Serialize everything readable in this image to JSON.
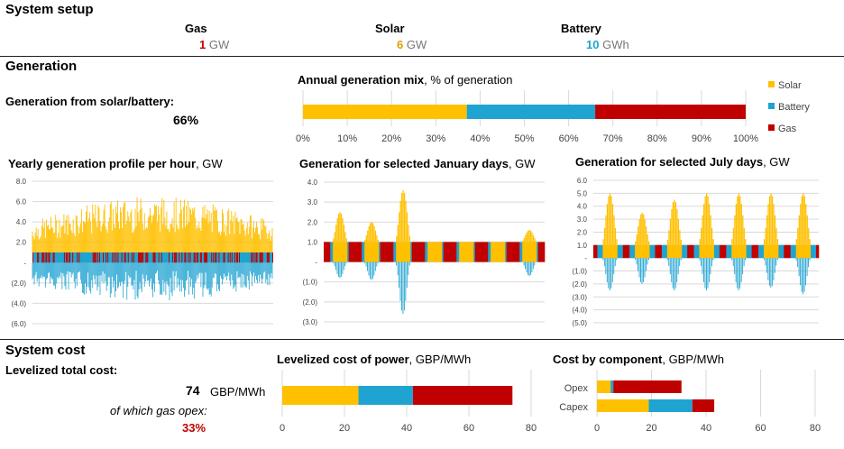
{
  "colors": {
    "solar": "#FFC000",
    "battery": "#1FA3D1",
    "gas": "#C00000"
  },
  "setup": {
    "title": "System setup",
    "gas": {
      "label": "Gas",
      "value": "1",
      "unit": "GW"
    },
    "solar": {
      "label": "Solar",
      "value": "6",
      "unit": "GW"
    },
    "battery": {
      "label": "Battery",
      "value": "10",
      "unit": "GWh"
    }
  },
  "generation": {
    "title": "Generation",
    "share_label": "Generation from solar/battery:",
    "share_value": "66%"
  },
  "cost": {
    "title": "System cost",
    "total_label": "Levelized total cost:",
    "total_value": "74",
    "total_unit": "GBP/MWh",
    "opex_label": "of which gas opex:",
    "opex_value": "33%"
  },
  "chart_data": [
    {
      "type": "bar",
      "id": "mix",
      "title": "Annual generation mix",
      "subtitle": ", % of generation",
      "categories": [
        "mix"
      ],
      "series": [
        {
          "name": "Solar",
          "values": [
            37
          ]
        },
        {
          "name": "Battery",
          "values": [
            29
          ]
        },
        {
          "name": "Gas",
          "values": [
            34
          ]
        }
      ],
      "xlim": [
        0,
        100
      ],
      "ticks": [
        "0%",
        "10%",
        "20%",
        "30%",
        "40%",
        "50%",
        "60%",
        "70%",
        "80%",
        "90%",
        "100%"
      ],
      "legend": "right"
    },
    {
      "type": "area",
      "id": "yearly",
      "title": "Yearly generation profile per hour",
      "subtitle": ", GW",
      "ylim": [
        -6,
        8
      ],
      "ticks": [
        "8.0",
        "6.0",
        "4.0",
        "2.0",
        "-",
        "(2.0)",
        "(4.0)",
        "(6.0)"
      ],
      "series": [
        "Solar",
        "Battery",
        "Gas"
      ]
    },
    {
      "type": "area",
      "id": "january",
      "title": "Generation for selected January days",
      "subtitle": ", GW",
      "ylim": [
        -3,
        4
      ],
      "ticks": [
        "4.0",
        "3.0",
        "2.0",
        "1.0",
        "-",
        "(1.0)",
        "(2.0)",
        "(3.0)"
      ],
      "days": 7,
      "solar_peaks": [
        2.5,
        2.0,
        3.6,
        0.6,
        0.4,
        0.5,
        1.6
      ],
      "battery_dips": [
        -0.8,
        -0.9,
        -2.6,
        0,
        0,
        0,
        -0.7
      ],
      "series": [
        "Solar",
        "Battery",
        "Gas"
      ]
    },
    {
      "type": "area",
      "id": "july",
      "title": "Generation for selected July days",
      "subtitle": ", GW",
      "ylim": [
        -5,
        6
      ],
      "ticks": [
        "6.0",
        "5.0",
        "4.0",
        "3.0",
        "2.0",
        "1.0",
        "-",
        "(1.0)",
        "(2.0)",
        "(3.0)",
        "(4.0)",
        "(5.0)"
      ],
      "days": 7,
      "solar_peaks": [
        5.0,
        3.5,
        4.5,
        5.0,
        5.0,
        5.0,
        5.0
      ],
      "battery_dips": [
        -2.5,
        -2.0,
        -2.5,
        -2.5,
        -2.5,
        -2.3,
        -2.8
      ],
      "series": [
        "Solar",
        "Battery",
        "Gas"
      ]
    },
    {
      "type": "bar",
      "id": "lcoe",
      "title": "Levelized cost of power",
      "subtitle": ", GBP/MWh",
      "categories": [
        "total"
      ],
      "series": [
        {
          "name": "Solar",
          "values": [
            24.5
          ]
        },
        {
          "name": "Battery",
          "values": [
            17.5
          ]
        },
        {
          "name": "Gas",
          "values": [
            32
          ]
        }
      ],
      "xlim": [
        0,
        80
      ],
      "ticks": [
        "0",
        "20",
        "40",
        "60",
        "80"
      ]
    },
    {
      "type": "bar",
      "id": "component",
      "title": "Cost by component",
      "subtitle": ", GBP/MWh",
      "categories": [
        "Opex",
        "Capex"
      ],
      "series": [
        {
          "name": "Solar",
          "values": [
            5,
            19
          ]
        },
        {
          "name": "Battery",
          "values": [
            1,
            16
          ]
        },
        {
          "name": "Gas",
          "values": [
            25,
            8
          ]
        }
      ],
      "xlim": [
        0,
        80
      ],
      "ticks": [
        "0",
        "20",
        "40",
        "60",
        "80"
      ]
    }
  ]
}
